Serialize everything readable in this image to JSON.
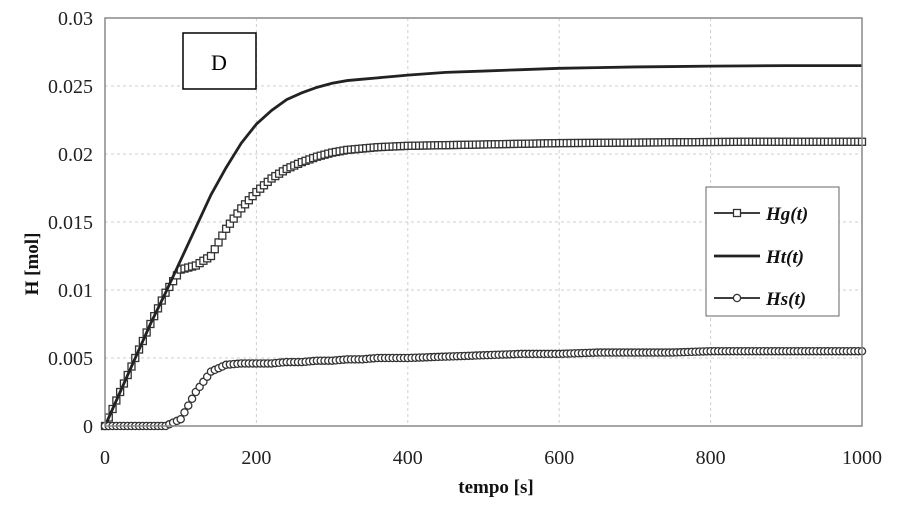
{
  "panel_label": "D",
  "chart_data": {
    "type": "line",
    "title": "",
    "xlabel": "tempo [s]",
    "ylabel": "H [mol]",
    "xlim": [
      0,
      1000
    ],
    "ylim": [
      0,
      0.03
    ],
    "x_ticks": [
      "0",
      "200",
      "400",
      "600",
      "800",
      "1000"
    ],
    "y_ticks": [
      "0",
      "0.005",
      "0.01",
      "0.015",
      "0.02",
      "0.025",
      "0.03"
    ],
    "grid": true,
    "legend_position": "right",
    "x": [
      0,
      20,
      40,
      60,
      80,
      100,
      120,
      140,
      160,
      180,
      200,
      220,
      240,
      260,
      280,
      300,
      320,
      340,
      360,
      380,
      400,
      450,
      500,
      550,
      600,
      650,
      700,
      750,
      800,
      850,
      900,
      950,
      1000
    ],
    "series": [
      {
        "name": "Hg(t)",
        "marker": "square",
        "values": [
          0,
          0.0025,
          0.005,
          0.0075,
          0.0098,
          0.0115,
          0.0118,
          0.0125,
          0.0145,
          0.016,
          0.0172,
          0.0182,
          0.0189,
          0.0194,
          0.0198,
          0.0201,
          0.0203,
          0.0204,
          0.0205,
          0.02055,
          0.0206,
          0.02065,
          0.0207,
          0.02075,
          0.0208,
          0.02082,
          0.02084,
          0.02086,
          0.02088,
          0.0209,
          0.0209,
          0.0209,
          0.0209
        ]
      },
      {
        "name": "Ht(t)",
        "marker": "none",
        "values": [
          0,
          0.0025,
          0.005,
          0.0075,
          0.0098,
          0.0122,
          0.0146,
          0.017,
          0.019,
          0.0208,
          0.0222,
          0.0232,
          0.024,
          0.0245,
          0.0249,
          0.0252,
          0.0254,
          0.0255,
          0.0256,
          0.0257,
          0.0258,
          0.026,
          0.0261,
          0.0262,
          0.0263,
          0.02635,
          0.0264,
          0.02643,
          0.02646,
          0.02648,
          0.0265,
          0.0265,
          0.0265
        ]
      },
      {
        "name": "Hs(t)",
        "marker": "circle",
        "values": [
          0,
          0,
          0,
          0,
          0,
          0.0005,
          0.0025,
          0.004,
          0.0045,
          0.0046,
          0.0046,
          0.0046,
          0.0047,
          0.0047,
          0.0048,
          0.0048,
          0.0049,
          0.0049,
          0.005,
          0.005,
          0.005,
          0.0051,
          0.0052,
          0.0053,
          0.0053,
          0.0054,
          0.0054,
          0.0054,
          0.0055,
          0.0055,
          0.0055,
          0.0055,
          0.0055
        ]
      }
    ]
  }
}
